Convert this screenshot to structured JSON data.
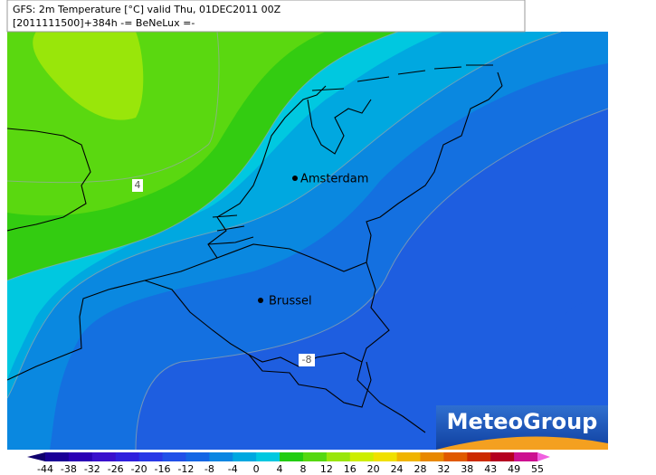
{
  "header": {
    "line1": "GFS: 2m Temperature [°C] valid Thu, 01DEC2011 00Z",
    "line2": "[2011111500]+384h -= BeNeLux =-"
  },
  "cities": [
    {
      "label": "Amsterdam"
    },
    {
      "label": "Brussel"
    }
  ],
  "contour_labels": [
    "4",
    "-8"
  ],
  "logo": "MeteoGroup",
  "legend": {
    "labels": [
      "-44",
      "-38",
      "-32",
      "-26",
      "-20",
      "-16",
      "-12",
      "-8",
      "-4",
      "0",
      "4",
      "8",
      "12",
      "16",
      "20",
      "24",
      "28",
      "32",
      "38",
      "43",
      "49",
      "55"
    ],
    "colors": [
      "#10006e",
      "#1a0096",
      "#2a00b4",
      "#3a10cc",
      "#3020dd",
      "#2838e6",
      "#2050e8",
      "#1466e4",
      "#0a86e2",
      "#00a8e0",
      "#00c8e0",
      "#22cc11",
      "#55d810",
      "#99e60a",
      "#ccee00",
      "#f0e000",
      "#f0b400",
      "#e88800",
      "#e05a00",
      "#cc2a00",
      "#b40020",
      "#cc1090",
      "#f060e0"
    ]
  }
}
